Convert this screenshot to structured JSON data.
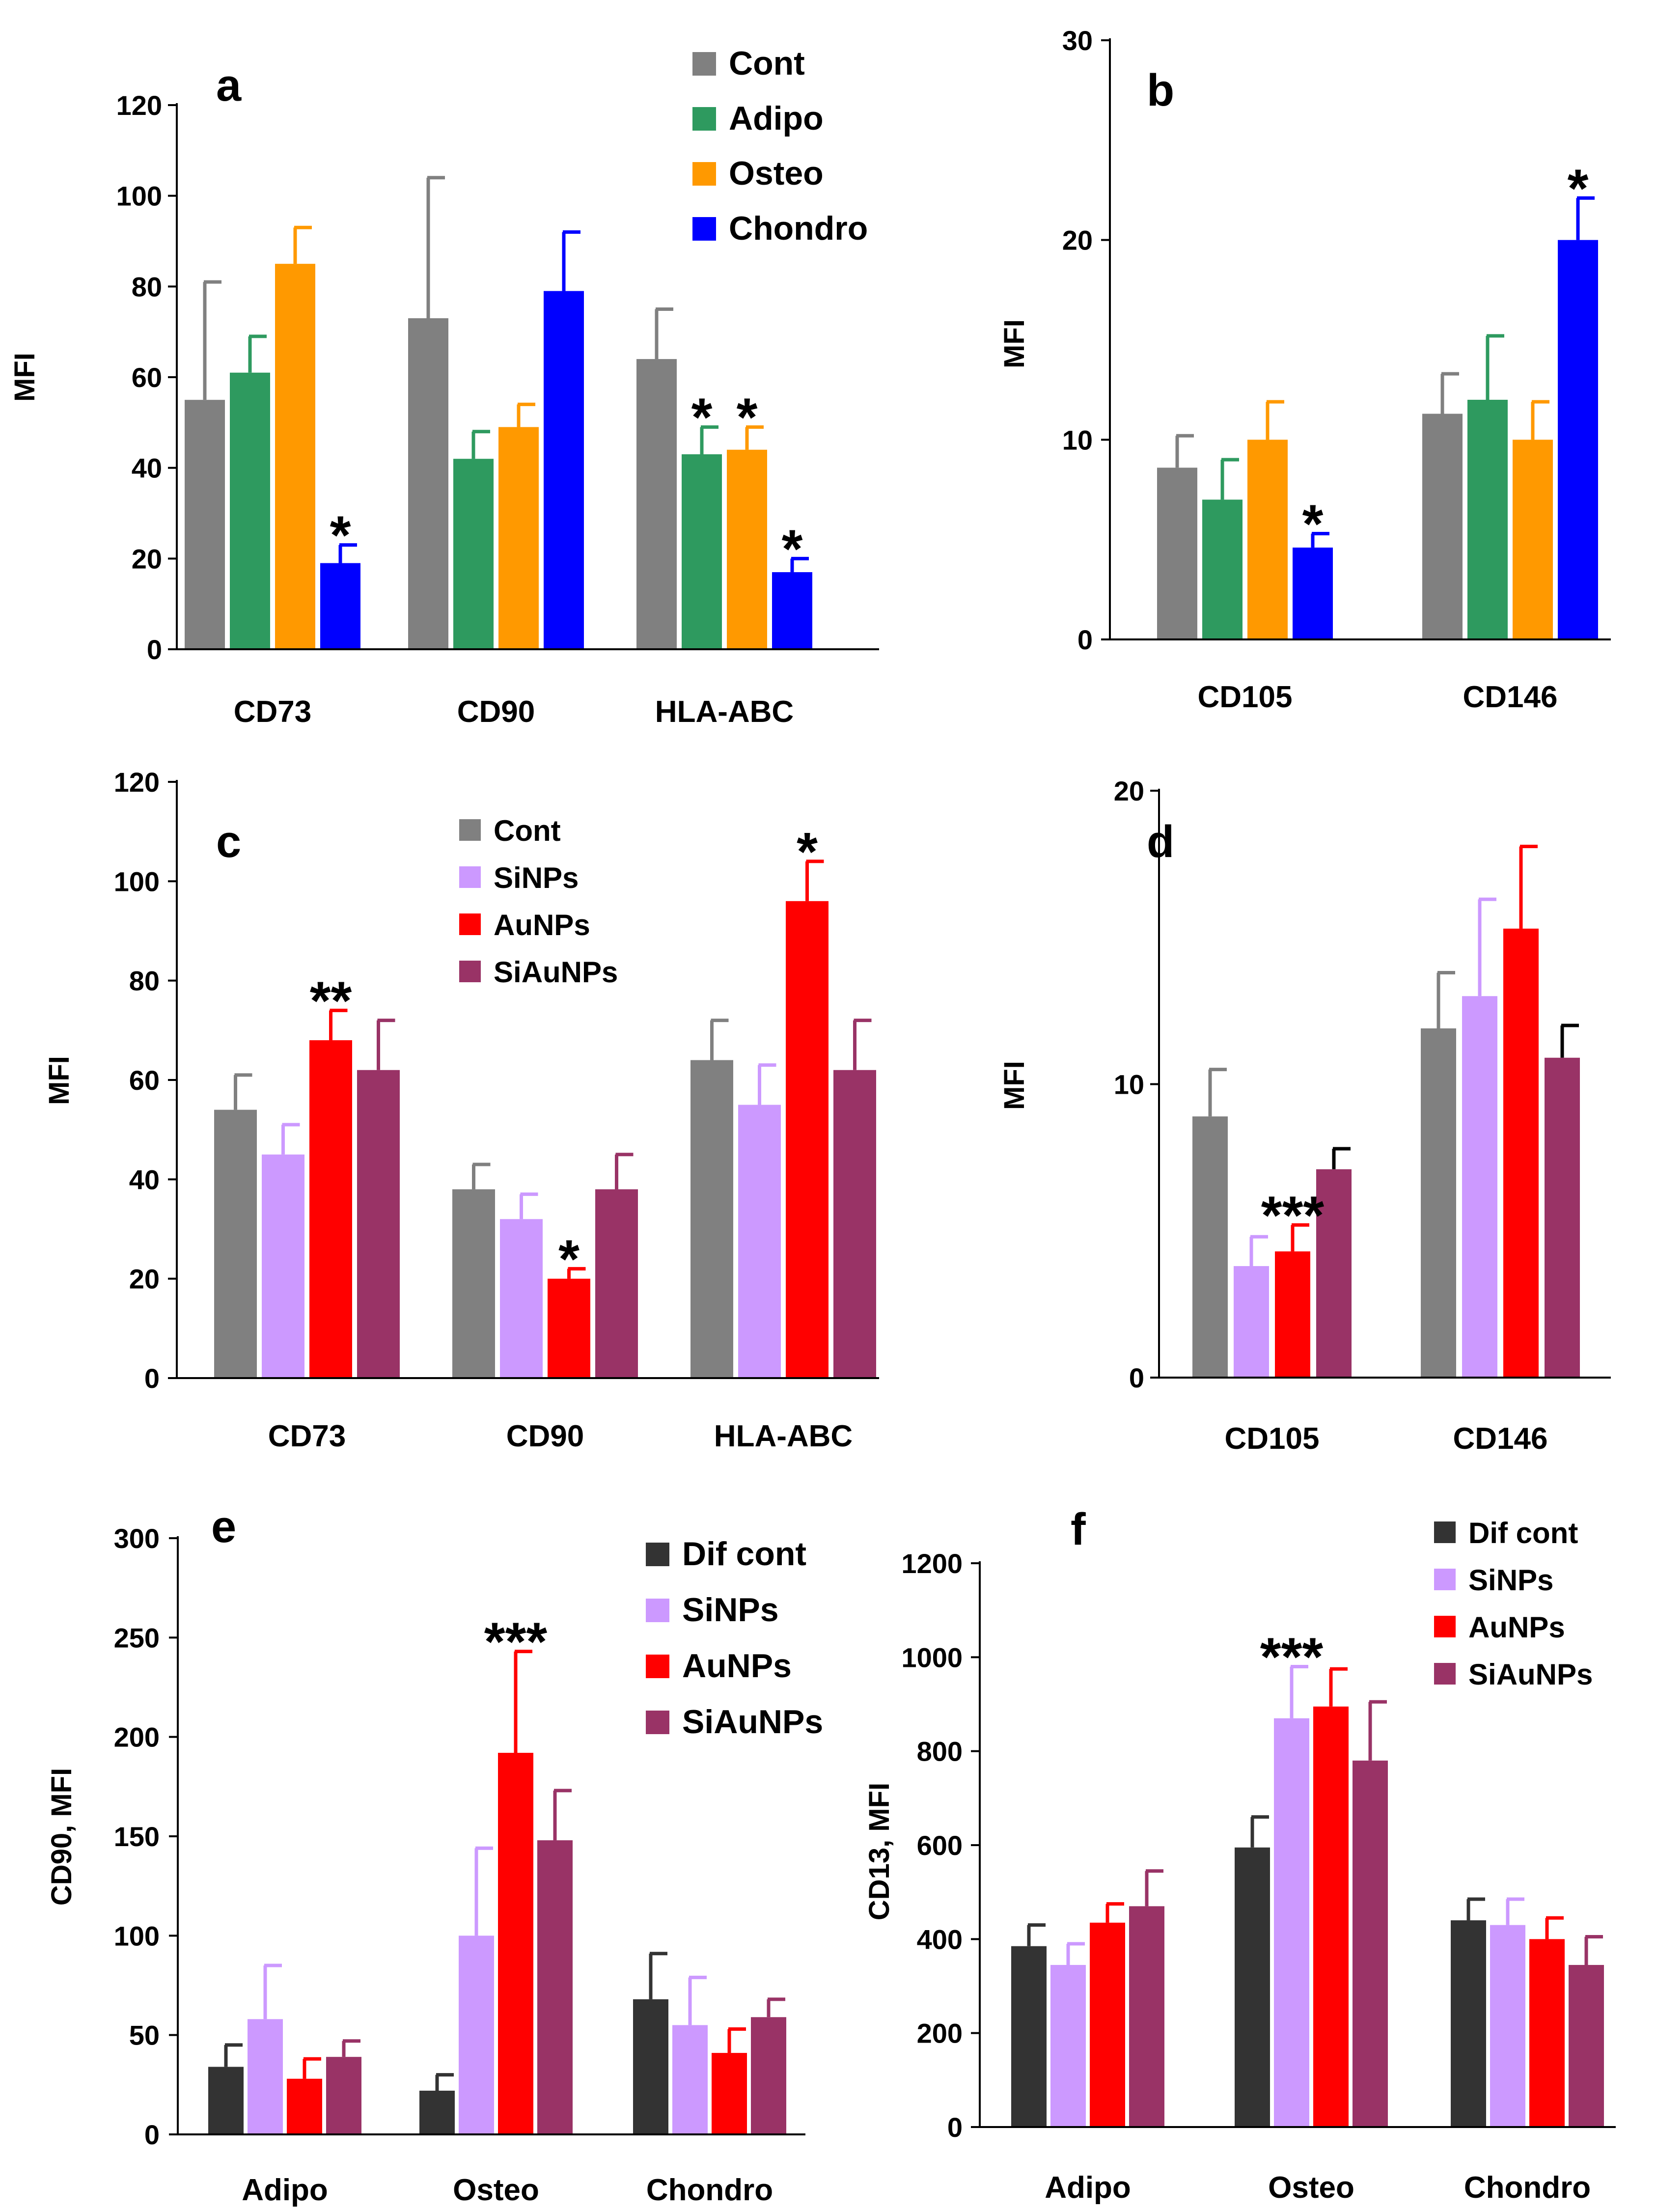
{
  "chart_data": [
    {
      "panel": "a",
      "type": "bar",
      "ylabel": "MFI",
      "ylim": [
        0,
        120
      ],
      "yticks": [
        0,
        20,
        40,
        60,
        80,
        100,
        120
      ],
      "categories": [
        "CD73",
        "CD90",
        "HLA-ABC"
      ],
      "legend_position": "top-right",
      "series": [
        {
          "name": "Cont",
          "color": "#808080",
          "values": [
            55,
            73,
            64
          ],
          "errors": [
            26,
            31,
            11
          ]
        },
        {
          "name": "Adipo",
          "color": "#2e9a5f",
          "values": [
            61,
            42,
            43
          ],
          "errors": [
            8,
            6,
            6
          ]
        },
        {
          "name": "Osteo",
          "color": "#ff9900",
          "values": [
            85,
            49,
            44
          ],
          "errors": [
            8,
            5,
            5
          ]
        },
        {
          "name": "Chondro",
          "color": "#0000ff",
          "values": [
            19,
            79,
            17
          ],
          "errors": [
            4,
            13,
            3
          ]
        }
      ],
      "annotations": [
        {
          "category": 0,
          "series": 3,
          "text": "*"
        },
        {
          "category": 2,
          "series": 1,
          "text": "*"
        },
        {
          "category": 2,
          "series": 2,
          "text": "*"
        },
        {
          "category": 2,
          "series": 3,
          "text": "*"
        }
      ]
    },
    {
      "panel": "b",
      "type": "bar",
      "ylabel": "MFI",
      "ylim": [
        0,
        30
      ],
      "yticks": [
        0,
        10,
        20,
        30
      ],
      "categories": [
        "CD105",
        "CD146"
      ],
      "series": [
        {
          "name": "Cont",
          "color": "#808080",
          "values": [
            8.6,
            11.3
          ],
          "errors": [
            1.6,
            2.0
          ]
        },
        {
          "name": "Adipo",
          "color": "#2e9a5f",
          "values": [
            7.0,
            12.0
          ],
          "errors": [
            2.0,
            3.2
          ]
        },
        {
          "name": "Osteo",
          "color": "#ff9900",
          "values": [
            10.0,
            10.0
          ],
          "errors": [
            1.9,
            1.9
          ]
        },
        {
          "name": "Chondro",
          "color": "#0000ff",
          "values": [
            4.6,
            20.0
          ],
          "errors": [
            0.7,
            2.1
          ]
        }
      ],
      "annotations": [
        {
          "category": 0,
          "series": 3,
          "text": "*"
        },
        {
          "category": 1,
          "series": 3,
          "text": "*"
        }
      ]
    },
    {
      "panel": "c",
      "type": "bar",
      "ylabel": "MFI",
      "ylim": [
        0,
        120
      ],
      "yticks": [
        0,
        20,
        40,
        60,
        80,
        100,
        120
      ],
      "categories": [
        "CD73",
        "CD90",
        "HLA-ABC"
      ],
      "legend_position": "top-left",
      "series": [
        {
          "name": "Cont",
          "color": "#808080",
          "values": [
            54,
            38,
            64
          ],
          "errors": [
            7,
            5,
            8
          ]
        },
        {
          "name": "SiNPs",
          "color": "#cc99ff",
          "values": [
            45,
            32,
            55
          ],
          "errors": [
            6,
            5,
            8
          ]
        },
        {
          "name": "AuNPs",
          "color": "#ff0000",
          "values": [
            68,
            20,
            96
          ],
          "errors": [
            6,
            2,
            8
          ]
        },
        {
          "name": "SiAuNPs",
          "color": "#993366",
          "values": [
            62,
            38,
            62
          ],
          "errors": [
            10,
            7,
            10
          ]
        }
      ],
      "annotations": [
        {
          "category": 0,
          "series": 2,
          "text": "**"
        },
        {
          "category": 1,
          "series": 2,
          "text": "*"
        },
        {
          "category": 2,
          "series": 2,
          "text": "*"
        }
      ]
    },
    {
      "panel": "d",
      "type": "bar",
      "ylabel": "MFI",
      "ylim": [
        0,
        20
      ],
      "yticks": [
        0,
        10,
        20
      ],
      "categories": [
        "CD105",
        "CD146"
      ],
      "series": [
        {
          "name": "Cont",
          "color": "#808080",
          "values": [
            8.9,
            11.9
          ],
          "errors": [
            1.6,
            1.9
          ]
        },
        {
          "name": "SiNPs",
          "color": "#cc99ff",
          "values": [
            3.8,
            13.0
          ],
          "errors": [
            1.0,
            3.3
          ]
        },
        {
          "name": "AuNPs",
          "color": "#ff0000",
          "values": [
            4.3,
            15.3
          ],
          "errors": [
            0.9,
            2.8
          ]
        },
        {
          "name": "SiAuNPs",
          "color": "#993366",
          "values": [
            7.1,
            10.9
          ],
          "errors": [
            0.7,
            1.1
          ],
          "error_color": "#000000"
        }
      ],
      "annotations": [
        {
          "category": 0,
          "series": 2,
          "text": "***"
        }
      ]
    },
    {
      "panel": "e",
      "type": "bar",
      "ylabel": "CD90, MFI",
      "ylim": [
        0,
        300
      ],
      "yticks": [
        0,
        50,
        100,
        150,
        200,
        250,
        300
      ],
      "categories": [
        "Adipo",
        "Osteo",
        "Chondro"
      ],
      "legend_position": "top-right",
      "series": [
        {
          "name": "Dif cont",
          "color": "#333333",
          "values": [
            34,
            22,
            68
          ],
          "errors": [
            11,
            8,
            23
          ]
        },
        {
          "name": "SiNPs",
          "color": "#cc99ff",
          "values": [
            58,
            100,
            55
          ],
          "errors": [
            27,
            44,
            24
          ]
        },
        {
          "name": "AuNPs",
          "color": "#ff0000",
          "values": [
            28,
            192,
            41
          ],
          "errors": [
            10,
            51,
            12
          ]
        },
        {
          "name": "SiAuNPs",
          "color": "#993366",
          "values": [
            39,
            148,
            59
          ],
          "errors": [
            8,
            25,
            9
          ]
        }
      ],
      "annotations": [
        {
          "category": 1,
          "series": 2,
          "text": "***"
        }
      ]
    },
    {
      "panel": "f",
      "type": "bar",
      "ylabel": "CD13, MFI",
      "ylim": [
        0,
        1200
      ],
      "yticks": [
        0,
        200,
        400,
        600,
        800,
        1000,
        1200
      ],
      "categories": [
        "Adipo",
        "Osteo",
        "Chondro"
      ],
      "legend_position": "top-right",
      "series": [
        {
          "name": "Dif cont",
          "color": "#333333",
          "values": [
            385,
            595,
            440
          ],
          "errors": [
            45,
            65,
            45
          ]
        },
        {
          "name": "SiNPs",
          "color": "#cc99ff",
          "values": [
            345,
            870,
            430
          ],
          "errors": [
            45,
            110,
            55
          ]
        },
        {
          "name": "AuNPs",
          "color": "#ff0000",
          "values": [
            435,
            895,
            400
          ],
          "errors": [
            40,
            80,
            45
          ]
        },
        {
          "name": "SiAuNPs",
          "color": "#993366",
          "values": [
            470,
            780,
            345
          ],
          "errors": [
            75,
            125,
            60
          ]
        }
      ],
      "annotations": [
        {
          "category": 1,
          "series": 1,
          "text": "***"
        }
      ]
    }
  ]
}
